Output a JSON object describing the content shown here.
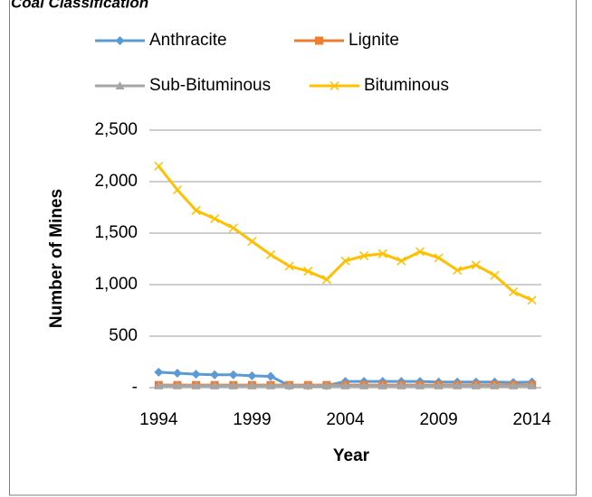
{
  "chart_data": {
    "type": "line",
    "title": "Coal Classification",
    "xlabel": "Year",
    "ylabel": "Number of Mines",
    "categories": [
      "1994",
      null,
      null,
      null,
      null,
      "1999",
      null,
      null,
      null,
      null,
      "2004",
      null,
      null,
      null,
      null,
      "2009",
      null,
      null,
      null,
      null,
      "2014"
    ],
    "series": [
      {
        "name": "Anthracite",
        "color": "#5b9bd5",
        "marker": "diamond",
        "values": [
          150,
          140,
          130,
          125,
          125,
          115,
          110,
          20,
          20,
          20,
          60,
          60,
          60,
          60,
          60,
          55,
          55,
          55,
          55,
          50,
          55
        ]
      },
      {
        "name": "Lignite",
        "color": "#ed7d31",
        "marker": "square",
        "values": [
          25,
          25,
          25,
          25,
          25,
          25,
          25,
          25,
          25,
          25,
          25,
          25,
          25,
          25,
          25,
          25,
          25,
          25,
          25,
          25,
          25
        ]
      },
      {
        "name": "Sub-Bituminous",
        "color": "#a5a5a5",
        "marker": "triangle",
        "values": [
          20,
          20,
          20,
          20,
          20,
          20,
          20,
          20,
          20,
          20,
          20,
          20,
          20,
          20,
          20,
          20,
          20,
          20,
          20,
          20,
          20
        ]
      },
      {
        "name": "Bituminous",
        "color": "#ffc000",
        "marker": "x",
        "values": [
          2150,
          1920,
          1720,
          1640,
          1550,
          1420,
          1290,
          1180,
          1130,
          1050,
          1230,
          1280,
          1300,
          1230,
          1320,
          1260,
          1140,
          1190,
          1090,
          930,
          850
        ]
      }
    ],
    "ylim": [
      0,
      2500
    ],
    "yticks": [
      {
        "value": 0,
        "label": "-"
      },
      500,
      {
        "value": 1000,
        "label": "1,000"
      },
      {
        "value": 1500,
        "label": "1,500"
      },
      {
        "value": 2000,
        "label": "2,000"
      },
      {
        "value": 2500,
        "label": "2,500"
      }
    ],
    "grid": true,
    "legend": "top"
  }
}
